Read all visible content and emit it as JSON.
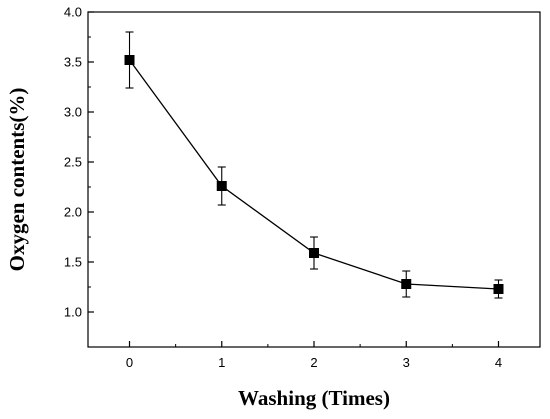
{
  "chart_data": {
    "type": "line",
    "title": "",
    "xlabel": "Washing (Times)",
    "ylabel": "Oxygen contents(%)",
    "x": [
      0,
      1,
      2,
      3,
      4
    ],
    "xlim": [
      -0.45,
      4.45
    ],
    "ylim": [
      0.65,
      4.0
    ],
    "x_ticks": [
      "0",
      "1",
      "2",
      "3",
      "4"
    ],
    "y_ticks": [
      "1.0",
      "1.5",
      "2.0",
      "2.5",
      "3.0",
      "3.5",
      "4.0"
    ],
    "grid": false,
    "legend": "none",
    "marker": "square",
    "series": [
      {
        "values": [
          3.52,
          2.26,
          1.59,
          1.28,
          1.23
        ],
        "errors": [
          0.28,
          0.19,
          0.16,
          0.13,
          0.09
        ],
        "color": "#000000"
      }
    ]
  }
}
